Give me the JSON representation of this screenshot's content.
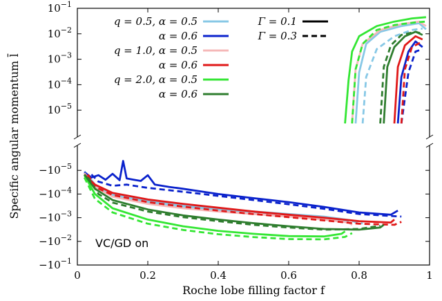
{
  "chart_data": {
    "type": "line",
    "xlabel": "Roche lobe filling factor f",
    "ylabel": "Specific angular momentum l̄",
    "annotation": "VC/GD on",
    "xlim": [
      0,
      1
    ],
    "x_ticks": [
      "0",
      "0.2",
      "0.4",
      "0.6",
      "0.8",
      "1"
    ],
    "y_scale": "symlog (log positive upper panel, log negative lower panel, broken axis)",
    "y_ticks_upper": [
      "10^-5",
      "10^-4",
      "10^-3",
      "10^-2",
      "10^-1"
    ],
    "y_ticks_lower": [
      "-10^-5",
      "-10^-4",
      "-10^-3",
      "-10^-2",
      "-10^-1"
    ],
    "grid": false,
    "legend_placement": "top",
    "legend_left": [
      {
        "label": "q = 0.5, α = 0.5",
        "color": "#87c8e6"
      },
      {
        "label": "α = 0.6",
        "color": "#0a22cc"
      },
      {
        "label": "q = 1.0, α = 0.5",
        "color": "#f5b8b8"
      },
      {
        "label": "α = 0.6",
        "color": "#e01818"
      },
      {
        "label": "q = 2.0, α = 0.5",
        "color": "#33e633"
      },
      {
        "label": "α = 0.6",
        "color": "#2e7d2e"
      }
    ],
    "legend_right": [
      {
        "label": "Γ = 0.1",
        "dash": "solid"
      },
      {
        "label": "Γ = 0.3",
        "dash": "dashed"
      }
    ],
    "series": [
      {
        "q": 0.5,
        "alpha": 0.5,
        "gamma": 0.1,
        "color": "#87c8e6",
        "dash": "solid",
        "neg": [
          [
            0.02,
            -1.1e-05
          ],
          [
            0.05,
            -4e-05
          ],
          [
            0.1,
            -0.0001
          ],
          [
            0.2,
            -0.0002
          ],
          [
            0.3,
            -0.0003
          ],
          [
            0.4,
            -0.00042
          ],
          [
            0.5,
            -0.00055
          ],
          [
            0.6,
            -0.0007
          ],
          [
            0.7,
            -0.0009
          ],
          [
            0.78,
            -0.0013
          ],
          [
            0.79,
            -0.0016
          ]
        ],
        "pos": [
          [
            0.79,
            3e-06
          ],
          [
            0.8,
            0.0003
          ],
          [
            0.82,
            0.004
          ],
          [
            0.86,
            0.012
          ],
          [
            0.92,
            0.02
          ],
          [
            0.97,
            0.026
          ],
          [
            0.99,
            0.015
          ]
        ]
      },
      {
        "q": 0.5,
        "alpha": 0.5,
        "gamma": 0.3,
        "color": "#87c8e6",
        "dash": "dashed",
        "neg": [
          [
            0.02,
            -1.3e-05
          ],
          [
            0.05,
            -5e-05
          ],
          [
            0.1,
            -0.00012
          ],
          [
            0.2,
            -0.00024
          ],
          [
            0.3,
            -0.00035
          ],
          [
            0.4,
            -0.0005
          ],
          [
            0.5,
            -0.00065
          ],
          [
            0.6,
            -0.00085
          ],
          [
            0.7,
            -0.0011
          ],
          [
            0.8,
            -0.0015
          ],
          [
            0.81,
            -0.0018
          ]
        ],
        "pos": [
          [
            0.81,
            3e-06
          ],
          [
            0.82,
            0.0002
          ],
          [
            0.85,
            0.0025
          ],
          [
            0.9,
            0.008
          ],
          [
            0.95,
            0.014
          ],
          [
            0.98,
            0.016
          ]
        ]
      },
      {
        "q": 0.5,
        "alpha": 0.6,
        "gamma": 0.1,
        "color": "#0a22cc",
        "dash": "solid",
        "neg": [
          [
            0.02,
            -1.2e-05
          ],
          [
            0.04,
            -2e-05
          ],
          [
            0.06,
            -1.6e-05
          ],
          [
            0.08,
            -2.5e-05
          ],
          [
            0.1,
            -1.4e-05
          ],
          [
            0.12,
            -2.6e-05
          ],
          [
            0.13,
            -4e-06
          ],
          [
            0.14,
            -2.2e-05
          ],
          [
            0.16,
            -2.5e-05
          ],
          [
            0.18,
            -2.8e-05
          ],
          [
            0.2,
            -1.6e-05
          ],
          [
            0.22,
            -4e-05
          ],
          [
            0.26,
            -5e-05
          ],
          [
            0.3,
            -6e-05
          ],
          [
            0.4,
            -0.0001
          ],
          [
            0.5,
            -0.00015
          ],
          [
            0.6,
            -0.00022
          ],
          [
            0.7,
            -0.00035
          ],
          [
            0.8,
            -0.0006
          ],
          [
            0.89,
            -0.00075
          ],
          [
            0.91,
            -0.0005
          ]
        ],
        "pos": [
          [
            0.91,
            3e-06
          ],
          [
            0.92,
            0.0002
          ],
          [
            0.94,
            0.002
          ],
          [
            0.96,
            0.005
          ],
          [
            0.98,
            0.003
          ]
        ]
      },
      {
        "q": 0.5,
        "alpha": 0.6,
        "gamma": 0.3,
        "color": "#0a22cc",
        "dash": "dashed",
        "neg": [
          [
            0.04,
            -1.5e-05
          ],
          [
            0.06,
            -3e-05
          ],
          [
            0.1,
            -4.5e-05
          ],
          [
            0.14,
            -4e-05
          ],
          [
            0.2,
            -5.5e-05
          ],
          [
            0.3,
            -8e-05
          ],
          [
            0.4,
            -0.00012
          ],
          [
            0.5,
            -0.00018
          ],
          [
            0.6,
            -0.00027
          ],
          [
            0.7,
            -0.00042
          ],
          [
            0.8,
            -0.0007
          ],
          [
            0.92,
            -0.0009
          ]
        ],
        "pos": [
          [
            0.92,
            3e-06
          ],
          [
            0.94,
            0.0003
          ],
          [
            0.96,
            0.002
          ],
          [
            0.98,
            0.0025
          ]
        ]
      },
      {
        "q": 1.0,
        "alpha": 0.5,
        "gamma": 0.1,
        "color": "#f5b8b8",
        "dash": "solid",
        "neg": [
          [
            0.02,
            -1.3e-05
          ],
          [
            0.05,
            -5e-05
          ],
          [
            0.1,
            -0.00013
          ],
          [
            0.2,
            -0.00026
          ],
          [
            0.3,
            -0.0004
          ],
          [
            0.4,
            -0.00055
          ],
          [
            0.5,
            -0.0007
          ],
          [
            0.6,
            -0.0009
          ],
          [
            0.7,
            -0.0012
          ],
          [
            0.77,
            -0.0016
          ],
          [
            0.78,
            -0.002
          ]
        ],
        "pos": [
          [
            0.78,
            3e-06
          ],
          [
            0.79,
            0.0004
          ],
          [
            0.81,
            0.004
          ],
          [
            0.86,
            0.014
          ],
          [
            0.92,
            0.024
          ],
          [
            0.97,
            0.03
          ],
          [
            0.99,
            0.02
          ]
        ]
      },
      {
        "q": 1.0,
        "alpha": 0.6,
        "gamma": 0.1,
        "color": "#e01818",
        "dash": "solid",
        "neg": [
          [
            0.02,
            -1.5e-05
          ],
          [
            0.05,
            -4e-05
          ],
          [
            0.1,
            -9e-05
          ],
          [
            0.2,
            -0.00017
          ],
          [
            0.3,
            -0.00026
          ],
          [
            0.4,
            -0.00038
          ],
          [
            0.5,
            -0.00055
          ],
          [
            0.6,
            -0.00075
          ],
          [
            0.7,
            -0.001
          ],
          [
            0.8,
            -0.0014
          ],
          [
            0.89,
            -0.0016
          ],
          [
            0.9,
            -0.0012
          ]
        ],
        "pos": [
          [
            0.9,
            3e-06
          ],
          [
            0.91,
            0.0005
          ],
          [
            0.93,
            0.0035
          ],
          [
            0.96,
            0.008
          ],
          [
            0.98,
            0.006
          ]
        ]
      },
      {
        "q": 1.0,
        "alpha": 0.6,
        "gamma": 0.3,
        "color": "#e01818",
        "dash": "dashed",
        "neg": [
          [
            0.03,
            -1.5e-05
          ],
          [
            0.05,
            -5e-05
          ],
          [
            0.1,
            -0.00011
          ],
          [
            0.2,
            -0.00022
          ],
          [
            0.3,
            -0.00034
          ],
          [
            0.4,
            -0.0005
          ],
          [
            0.5,
            -0.0007
          ],
          [
            0.6,
            -0.00095
          ],
          [
            0.7,
            -0.0013
          ],
          [
            0.8,
            -0.0018
          ],
          [
            0.9,
            -0.002
          ],
          [
            0.92,
            -0.0015
          ]
        ],
        "pos": [
          [
            0.92,
            3e-06
          ],
          [
            0.93,
            0.0004
          ],
          [
            0.95,
            0.003
          ],
          [
            0.98,
            0.005
          ]
        ]
      },
      {
        "q": 2.0,
        "alpha": 0.5,
        "gamma": 0.1,
        "color": "#33e633",
        "dash": "solid",
        "neg": [
          [
            0.02,
            -1.6e-05
          ],
          [
            0.05,
            -0.0001
          ],
          [
            0.1,
            -0.0004
          ],
          [
            0.2,
            -0.0012
          ],
          [
            0.3,
            -0.0023
          ],
          [
            0.4,
            -0.0036
          ],
          [
            0.5,
            -0.0048
          ],
          [
            0.6,
            -0.006
          ],
          [
            0.7,
            -0.0062
          ],
          [
            0.75,
            -0.0048
          ],
          [
            0.76,
            -0.0038
          ]
        ],
        "pos": [
          [
            0.76,
            3e-06
          ],
          [
            0.77,
            0.00015
          ],
          [
            0.78,
            0.002
          ],
          [
            0.8,
            0.008
          ],
          [
            0.85,
            0.02
          ],
          [
            0.9,
            0.03
          ],
          [
            0.95,
            0.04
          ],
          [
            0.99,
            0.045
          ]
        ]
      },
      {
        "q": 2.0,
        "alpha": 0.5,
        "gamma": 0.3,
        "color": "#33e633",
        "dash": "dashed",
        "neg": [
          [
            0.02,
            -2e-05
          ],
          [
            0.05,
            -0.00016
          ],
          [
            0.1,
            -0.0006
          ],
          [
            0.2,
            -0.0018
          ],
          [
            0.3,
            -0.0033
          ],
          [
            0.4,
            -0.005
          ],
          [
            0.5,
            -0.0066
          ],
          [
            0.6,
            -0.008
          ],
          [
            0.7,
            -0.0082
          ],
          [
            0.76,
            -0.0065
          ],
          [
            0.78,
            -0.0045
          ]
        ],
        "pos": [
          [
            0.78,
            3e-06
          ],
          [
            0.79,
            0.0004
          ],
          [
            0.81,
            0.004
          ],
          [
            0.85,
            0.014
          ],
          [
            0.9,
            0.022
          ],
          [
            0.96,
            0.028
          ],
          [
            0.99,
            0.03
          ]
        ]
      },
      {
        "q": 2.0,
        "alpha": 0.6,
        "gamma": 0.1,
        "color": "#2e7d2e",
        "dash": "solid",
        "neg": [
          [
            0.02,
            -1.5e-05
          ],
          [
            0.05,
            -6e-05
          ],
          [
            0.1,
            -0.00018
          ],
          [
            0.2,
            -0.00045
          ],
          [
            0.3,
            -0.0008
          ],
          [
            0.4,
            -0.0012
          ],
          [
            0.5,
            -0.0017
          ],
          [
            0.6,
            -0.0023
          ],
          [
            0.7,
            -0.003
          ],
          [
            0.8,
            -0.0032
          ],
          [
            0.86,
            -0.0026
          ],
          [
            0.87,
            -0.002
          ]
        ],
        "pos": [
          [
            0.87,
            3e-06
          ],
          [
            0.88,
            0.0005
          ],
          [
            0.9,
            0.003
          ],
          [
            0.93,
            0.008
          ],
          [
            0.96,
            0.012
          ],
          [
            0.98,
            0.009
          ]
        ]
      },
      {
        "q": 2.0,
        "alpha": 0.6,
        "gamma": 0.3,
        "color": "#2e7d2e",
        "dash": "dashed",
        "neg": [
          [
            0.03,
            -2e-05
          ],
          [
            0.06,
            -0.0001
          ],
          [
            0.1,
            -0.00023
          ],
          [
            0.2,
            -0.00055
          ],
          [
            0.3,
            -0.00095
          ],
          [
            0.4,
            -0.0014
          ],
          [
            0.5,
            -0.002
          ],
          [
            0.6,
            -0.0026
          ],
          [
            0.7,
            -0.0032
          ],
          [
            0.8,
            -0.003
          ],
          [
            0.86,
            -0.0022
          ]
        ],
        "pos": [
          [
            0.86,
            3e-06
          ],
          [
            0.87,
            0.0005
          ],
          [
            0.89,
            0.0035
          ],
          [
            0.92,
            0.009
          ],
          [
            0.96,
            0.012
          ],
          [
            0.98,
            0.01
          ]
        ]
      }
    ]
  }
}
